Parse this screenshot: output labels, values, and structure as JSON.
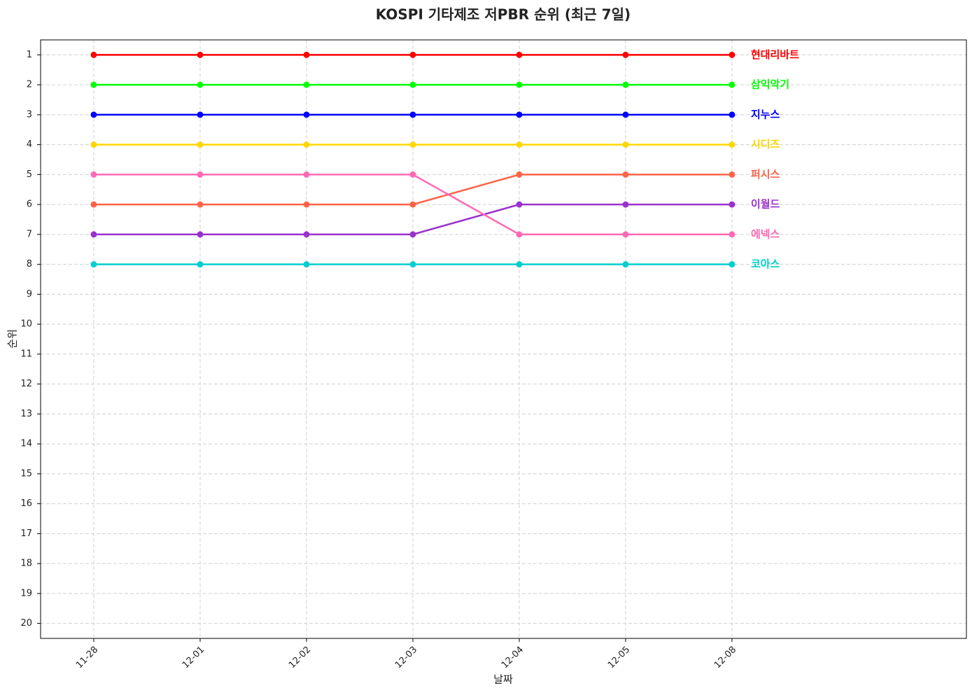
{
  "chart_data": {
    "type": "line",
    "title": "KOSPI 기타제조 저PBR 순위 (최근 7일)",
    "x_label": "날짜",
    "y_label": "순위",
    "categories": [
      "11-28",
      "12-01",
      "12-02",
      "12-03",
      "12-04",
      "12-05",
      "12-08"
    ],
    "ylim": [
      20.5,
      0.5
    ],
    "yticks": [
      1,
      2,
      3,
      4,
      5,
      6,
      7,
      8,
      9,
      10,
      11,
      12,
      13,
      14,
      15,
      16,
      17,
      18,
      19,
      20
    ],
    "grid": true,
    "series": [
      {
        "name": "현대리바트",
        "color": "#ff0000",
        "values": [
          1,
          1,
          1,
          1,
          1,
          1,
          1
        ]
      },
      {
        "name": "삼익악기",
        "color": "#00ff00",
        "values": [
          2,
          2,
          2,
          2,
          2,
          2,
          2
        ]
      },
      {
        "name": "지누스",
        "color": "#0000ff",
        "values": [
          3,
          3,
          3,
          3,
          3,
          3,
          3
        ]
      },
      {
        "name": "시디즈",
        "color": "#ffd700",
        "values": [
          4,
          4,
          4,
          4,
          4,
          4,
          4
        ]
      },
      {
        "name": "퍼시스",
        "color": "#ff6347",
        "values": [
          6,
          6,
          6,
          6,
          5,
          5,
          5
        ]
      },
      {
        "name": "이월드",
        "color": "#9932cc",
        "values": [
          7,
          7,
          7,
          7,
          6,
          6,
          6
        ]
      },
      {
        "name": "에넥스",
        "color": "#ff69b4",
        "values": [
          5,
          5,
          5,
          5,
          7,
          7,
          7
        ]
      },
      {
        "name": "코아스",
        "color": "#00ced1",
        "values": [
          8,
          8,
          8,
          8,
          8,
          8,
          8
        ]
      }
    ]
  }
}
